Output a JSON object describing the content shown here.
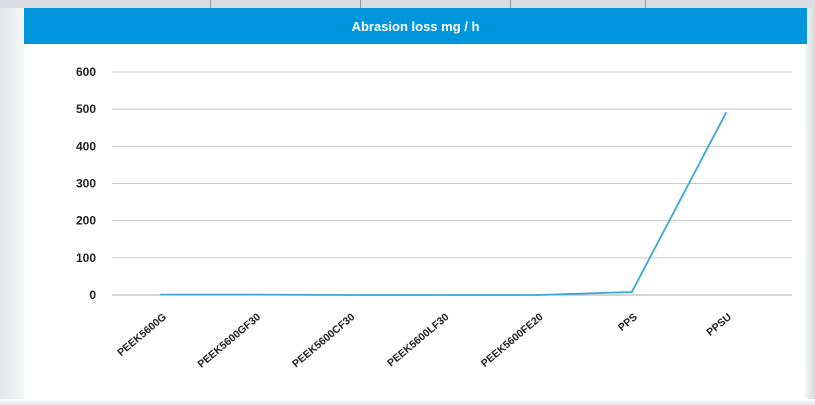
{
  "colors": {
    "header_bg": "#0096de",
    "line": "#3aa6d6",
    "grid": "#c9c9c9"
  },
  "chart_data": {
    "type": "line",
    "title": "Abrasion loss mg / h",
    "xlabel": "",
    "ylabel": "",
    "categories": [
      "PEEK5600G",
      "PEEK5600GF30",
      "PEEK5600CF30",
      "PEEK5600LF30",
      "PEEK5600FE20",
      "PPS",
      "PPSU"
    ],
    "series": [
      {
        "values": [
          1,
          1,
          0,
          0,
          0,
          8,
          490
        ]
      }
    ],
    "ylim": [
      0,
      600
    ],
    "yticks": [
      0,
      100,
      200,
      300,
      400,
      500,
      600
    ],
    "grid": true,
    "legend": "none"
  }
}
